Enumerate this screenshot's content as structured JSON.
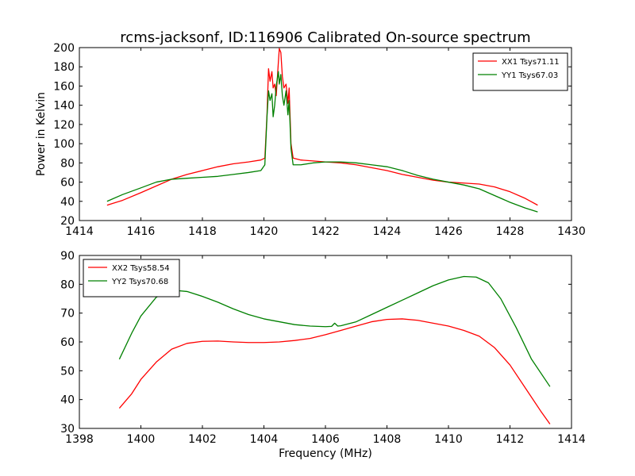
{
  "figure": {
    "title": "rcms-jacksonf, ID:116906 Calibrated On-source spectrum"
  },
  "chart_data": [
    {
      "type": "line",
      "title": "rcms-jacksonf, ID:116906 Calibrated On-source spectrum",
      "xlabel": "",
      "ylabel": "Power in Kelvin",
      "xlim": [
        1414,
        1430
      ],
      "ylim": [
        20,
        200
      ],
      "xticks": [
        1414,
        1416,
        1418,
        1420,
        1422,
        1424,
        1426,
        1428,
        1430
      ],
      "yticks": [
        20,
        40,
        60,
        80,
        100,
        120,
        140,
        160,
        180,
        200
      ],
      "legend_position": "top-right",
      "grid": false,
      "series": [
        {
          "name": "XX1 Tsys71.11",
          "color": "#ff0000",
          "points": [
            [
              1414.9,
              36
            ],
            [
              1415.4,
              41
            ],
            [
              1416,
              49
            ],
            [
              1416.5,
              56
            ],
            [
              1417,
              63
            ],
            [
              1417.5,
              68
            ],
            [
              1418,
              72
            ],
            [
              1418.5,
              76
            ],
            [
              1419,
              79
            ],
            [
              1419.5,
              81
            ],
            [
              1419.9,
              83
            ],
            [
              1420.03,
              85
            ],
            [
              1420.1,
              130
            ],
            [
              1420.15,
              178
            ],
            [
              1420.2,
              165
            ],
            [
              1420.26,
              175
            ],
            [
              1420.3,
              158
            ],
            [
              1420.35,
              162
            ],
            [
              1420.4,
              150
            ],
            [
              1420.47,
              185
            ],
            [
              1420.5,
              199
            ],
            [
              1420.55,
              195
            ],
            [
              1420.6,
              170
            ],
            [
              1420.65,
              158
            ],
            [
              1420.72,
              162
            ],
            [
              1420.78,
              142
            ],
            [
              1420.82,
              158
            ],
            [
              1420.88,
              100
            ],
            [
              1420.95,
              85
            ],
            [
              1421.2,
              83
            ],
            [
              1421.6,
              82
            ],
            [
              1422,
              81
            ],
            [
              1422.5,
              80
            ],
            [
              1423,
              78
            ],
            [
              1423.5,
              75
            ],
            [
              1424,
              72
            ],
            [
              1424.5,
              68
            ],
            [
              1425,
              65
            ],
            [
              1425.5,
              62
            ],
            [
              1426,
              60
            ],
            [
              1426.5,
              59
            ],
            [
              1427,
              58
            ],
            [
              1427.5,
              55
            ],
            [
              1428,
              50
            ],
            [
              1428.5,
              43
            ],
            [
              1428.9,
              36
            ]
          ]
        },
        {
          "name": "YY1 Tsys67.03",
          "color": "#008000",
          "points": [
            [
              1414.9,
              40
            ],
            [
              1415.4,
              47
            ],
            [
              1416,
              54
            ],
            [
              1416.5,
              60
            ],
            [
              1417,
              63
            ],
            [
              1417.5,
              64
            ],
            [
              1418,
              65
            ],
            [
              1418.5,
              66
            ],
            [
              1419,
              68
            ],
            [
              1419.5,
              70
            ],
            [
              1419.9,
              72
            ],
            [
              1420.03,
              78
            ],
            [
              1420.1,
              128
            ],
            [
              1420.15,
              155
            ],
            [
              1420.2,
              145
            ],
            [
              1420.26,
              152
            ],
            [
              1420.3,
              128
            ],
            [
              1420.35,
              140
            ],
            [
              1420.4,
              160
            ],
            [
              1420.47,
              175
            ],
            [
              1420.5,
              162
            ],
            [
              1420.55,
              172
            ],
            [
              1420.6,
              150
            ],
            [
              1420.65,
              140
            ],
            [
              1420.72,
              155
            ],
            [
              1420.78,
              130
            ],
            [
              1420.82,
              145
            ],
            [
              1420.88,
              95
            ],
            [
              1420.95,
              78
            ],
            [
              1421.2,
              78
            ],
            [
              1421.6,
              80
            ],
            [
              1422,
              81
            ],
            [
              1422.5,
              81
            ],
            [
              1423,
              80
            ],
            [
              1423.5,
              78
            ],
            [
              1424,
              76
            ],
            [
              1424.5,
              72
            ],
            [
              1425,
              67
            ],
            [
              1425.5,
              63
            ],
            [
              1426,
              60
            ],
            [
              1426.5,
              57
            ],
            [
              1427,
              53
            ],
            [
              1427.5,
              46
            ],
            [
              1428,
              39
            ],
            [
              1428.5,
              33
            ],
            [
              1428.9,
              29
            ]
          ]
        }
      ]
    },
    {
      "type": "line",
      "title": "",
      "xlabel": "Frequency (MHz)",
      "ylabel": "",
      "xlim": [
        1398,
        1414
      ],
      "ylim": [
        30,
        90
      ],
      "xticks": [
        1398,
        1400,
        1402,
        1404,
        1406,
        1408,
        1410,
        1412,
        1414
      ],
      "yticks": [
        30,
        40,
        50,
        60,
        70,
        80,
        90
      ],
      "legend_position": "top-left",
      "grid": false,
      "series": [
        {
          "name": "XX2 Tsys58.54",
          "color": "#ff0000",
          "points": [
            [
              1399.3,
              37
            ],
            [
              1399.7,
              42
            ],
            [
              1400,
              47
            ],
            [
              1400.5,
              53
            ],
            [
              1401,
              57.5
            ],
            [
              1401.5,
              59.5
            ],
            [
              1402,
              60.2
            ],
            [
              1402.5,
              60.3
            ],
            [
              1403,
              60
            ],
            [
              1403.5,
              59.8
            ],
            [
              1404,
              59.8
            ],
            [
              1404.5,
              60
            ],
            [
              1405,
              60.5
            ],
            [
              1405.5,
              61.2
            ],
            [
              1406,
              62.5
            ],
            [
              1406.5,
              64
            ],
            [
              1407,
              65.5
            ],
            [
              1407.5,
              67
            ],
            [
              1408,
              67.8
            ],
            [
              1408.5,
              68
            ],
            [
              1409,
              67.5
            ],
            [
              1409.5,
              66.5
            ],
            [
              1410,
              65.5
            ],
            [
              1410.5,
              64
            ],
            [
              1411,
              62
            ],
            [
              1411.5,
              58
            ],
            [
              1412,
              52
            ],
            [
              1412.5,
              44
            ],
            [
              1413,
              36
            ],
            [
              1413.3,
              31.5
            ]
          ]
        },
        {
          "name": "YY2 Tsys70.68",
          "color": "#008000",
          "points": [
            [
              1399.3,
              54
            ],
            [
              1399.7,
              63
            ],
            [
              1400,
              69
            ],
            [
              1400.5,
              75.5
            ],
            [
              1401,
              78
            ],
            [
              1401.5,
              77.5
            ],
            [
              1402,
              75.8
            ],
            [
              1402.5,
              73.8
            ],
            [
              1403,
              71.5
            ],
            [
              1403.5,
              69.5
            ],
            [
              1404,
              68
            ],
            [
              1404.5,
              67
            ],
            [
              1405,
              66
            ],
            [
              1405.5,
              65.5
            ],
            [
              1406,
              65.3
            ],
            [
              1406.2,
              65.4
            ],
            [
              1406.3,
              66.5
            ],
            [
              1406.4,
              65.5
            ],
            [
              1406.5,
              65.6
            ],
            [
              1407,
              67
            ],
            [
              1407.5,
              69.5
            ],
            [
              1408,
              72
            ],
            [
              1408.5,
              74.5
            ],
            [
              1409,
              77
            ],
            [
              1409.5,
              79.5
            ],
            [
              1410,
              81.5
            ],
            [
              1410.5,
              82.7
            ],
            [
              1410.9,
              82.5
            ],
            [
              1411.3,
              80.5
            ],
            [
              1411.7,
              75
            ],
            [
              1412.2,
              65
            ],
            [
              1412.7,
              54
            ],
            [
              1413.3,
              44.5
            ]
          ]
        }
      ]
    }
  ]
}
